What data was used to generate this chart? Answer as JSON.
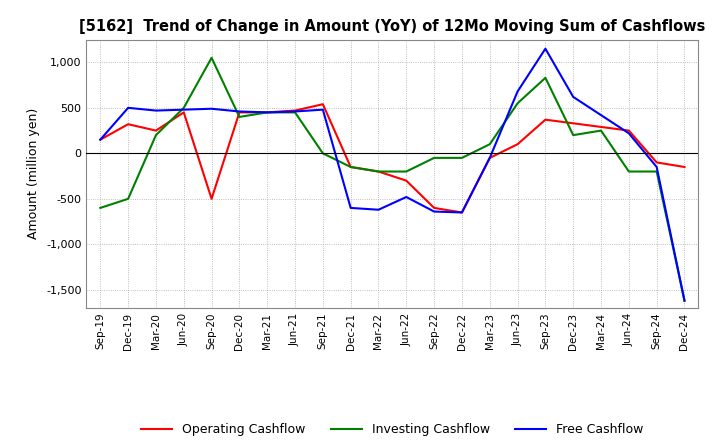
{
  "title": "[5162]  Trend of Change in Amount (YoY) of 12Mo Moving Sum of Cashflows",
  "ylabel": "Amount (million yen)",
  "x_labels": [
    "Sep-19",
    "Dec-19",
    "Mar-20",
    "Jun-20",
    "Sep-20",
    "Dec-20",
    "Mar-21",
    "Jun-21",
    "Sep-21",
    "Dec-21",
    "Mar-22",
    "Jun-22",
    "Sep-22",
    "Dec-22",
    "Mar-23",
    "Jun-23",
    "Sep-23",
    "Dec-23",
    "Mar-24",
    "Jun-24",
    "Sep-24",
    "Dec-24"
  ],
  "operating": [
    150,
    320,
    250,
    450,
    -500,
    450,
    450,
    470,
    540,
    -150,
    -200,
    -300,
    -600,
    -650,
    -50,
    100,
    370,
    330,
    290,
    250,
    -100,
    -150
  ],
  "investing": [
    -600,
    -500,
    200,
    500,
    1050,
    400,
    450,
    450,
    0,
    -150,
    -200,
    -200,
    -50,
    -50,
    100,
    550,
    830,
    200,
    250,
    -200,
    -200,
    -1620
  ],
  "free": [
    150,
    500,
    470,
    480,
    490,
    460,
    450,
    460,
    480,
    -600,
    -620,
    -480,
    -640,
    -650,
    -50,
    680,
    1150,
    620,
    420,
    220,
    -150,
    -1620
  ],
  "ylim": [
    -1700,
    1250
  ],
  "yticks": [
    -1500,
    -1000,
    -500,
    0,
    500,
    1000
  ],
  "operating_color": "#ff0000",
  "investing_color": "#008000",
  "free_color": "#0000ff",
  "bg_color": "#ffffff",
  "grid_color": "#aaaaaa"
}
